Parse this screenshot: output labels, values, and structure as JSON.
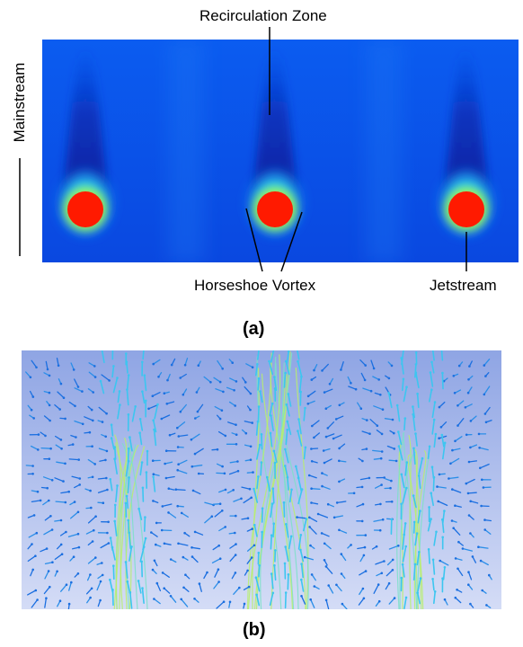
{
  "panel_a": {
    "caption": "(a)",
    "labels": {
      "recirculation": "Recirculation Zone",
      "mainstream": "Mainstream",
      "horseshoe": "Horseshoe Vortex",
      "jetstream": "Jetstream"
    },
    "colors": {
      "background": "#0a4fe6",
      "wake": "#0a2fb0",
      "halo": "#2fd6f0",
      "ring": "#9ef050",
      "jet": "#ff1a00"
    }
  },
  "panel_b": {
    "caption": "(b)",
    "colors": {
      "background_top": "#8fa5e4",
      "background_bottom": "#d4dcf6",
      "vector": "#1b6fe0",
      "streamline": "#b8f06a"
    }
  }
}
